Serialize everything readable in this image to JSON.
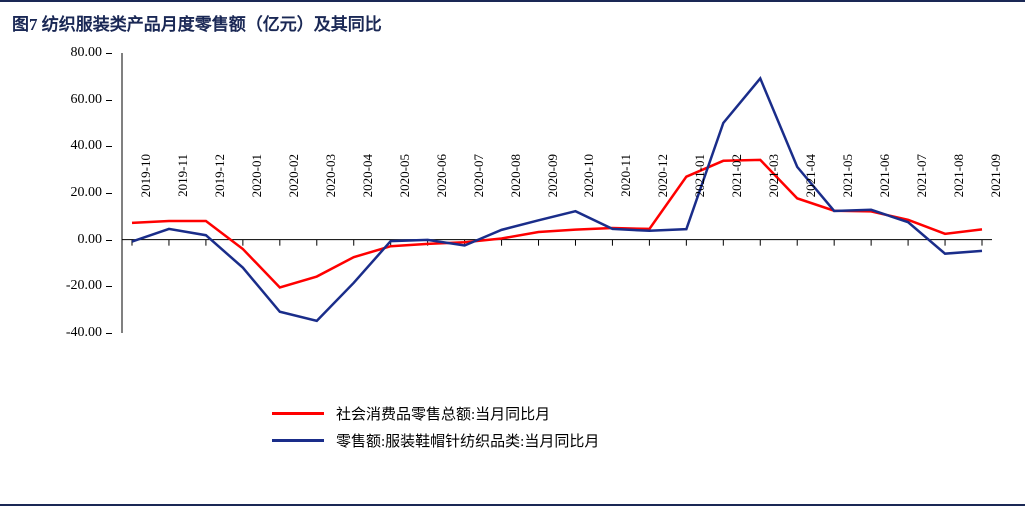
{
  "title": "图7 纺织服装类产品月度零售额（亿元）及其同比",
  "chart": {
    "type": "line",
    "background_color": "#ffffff",
    "grid_visible": false,
    "ylim": [
      -40,
      80
    ],
    "ytick_step": 20,
    "y_ticks": [
      -40.0,
      -20.0,
      0.0,
      20.0,
      40.0,
      60.0,
      80.0
    ],
    "y_tick_labels": [
      "-40.00",
      "-20.00",
      "0.00",
      "20.00",
      "40.00",
      "60.00",
      "80.00"
    ],
    "axis_color": "#000000",
    "axis_line_width": 1,
    "tick_fontsize": 14,
    "x_tick_rotation": -90,
    "categories": [
      "2019-10",
      "2019-11",
      "2019-12",
      "2020-01",
      "2020-02",
      "2020-03",
      "2020-04",
      "2020-05",
      "2020-06",
      "2020-07",
      "2020-08",
      "2020-09",
      "2020-10",
      "2020-11",
      "2020-12",
      "2021-01",
      "2021-02",
      "2021-03",
      "2021-04",
      "2021-05",
      "2021-06",
      "2021-07",
      "2021-08",
      "2021-09"
    ],
    "series": [
      {
        "name": "社会消费品零售总额:当月同比月",
        "color": "#ff0000",
        "line_width": 2.5,
        "values": [
          7.2,
          8.0,
          8.0,
          -4.0,
          -20.5,
          -15.8,
          -7.5,
          -2.8,
          -1.8,
          -1.1,
          0.5,
          3.3,
          4.3,
          5.0,
          4.6,
          27.0,
          33.8,
          34.2,
          17.7,
          12.4,
          12.1,
          8.5,
          2.5,
          4.4
        ]
      },
      {
        "name": "零售额:服装鞋帽针纺织品类:当月同比月",
        "color": "#1a2d8a",
        "line_width": 2.5,
        "values": [
          -0.8,
          4.6,
          1.9,
          -12.0,
          -30.9,
          -34.8,
          -18.5,
          -0.6,
          -0.1,
          -2.5,
          4.2,
          8.3,
          12.2,
          4.6,
          3.8,
          4.5,
          50.0,
          69.1,
          31.2,
          12.3,
          12.8,
          7.5,
          -6.0,
          -4.8
        ]
      }
    ],
    "legend": {
      "position": "bottom",
      "fontsize": 15,
      "swatch_width": 52
    }
  },
  "colors": {
    "title_color": "#1a2855",
    "rule_color": "#1a2855"
  },
  "typography": {
    "title_fontsize": 17,
    "title_fontweight": "bold",
    "font_family": "SimSun"
  }
}
